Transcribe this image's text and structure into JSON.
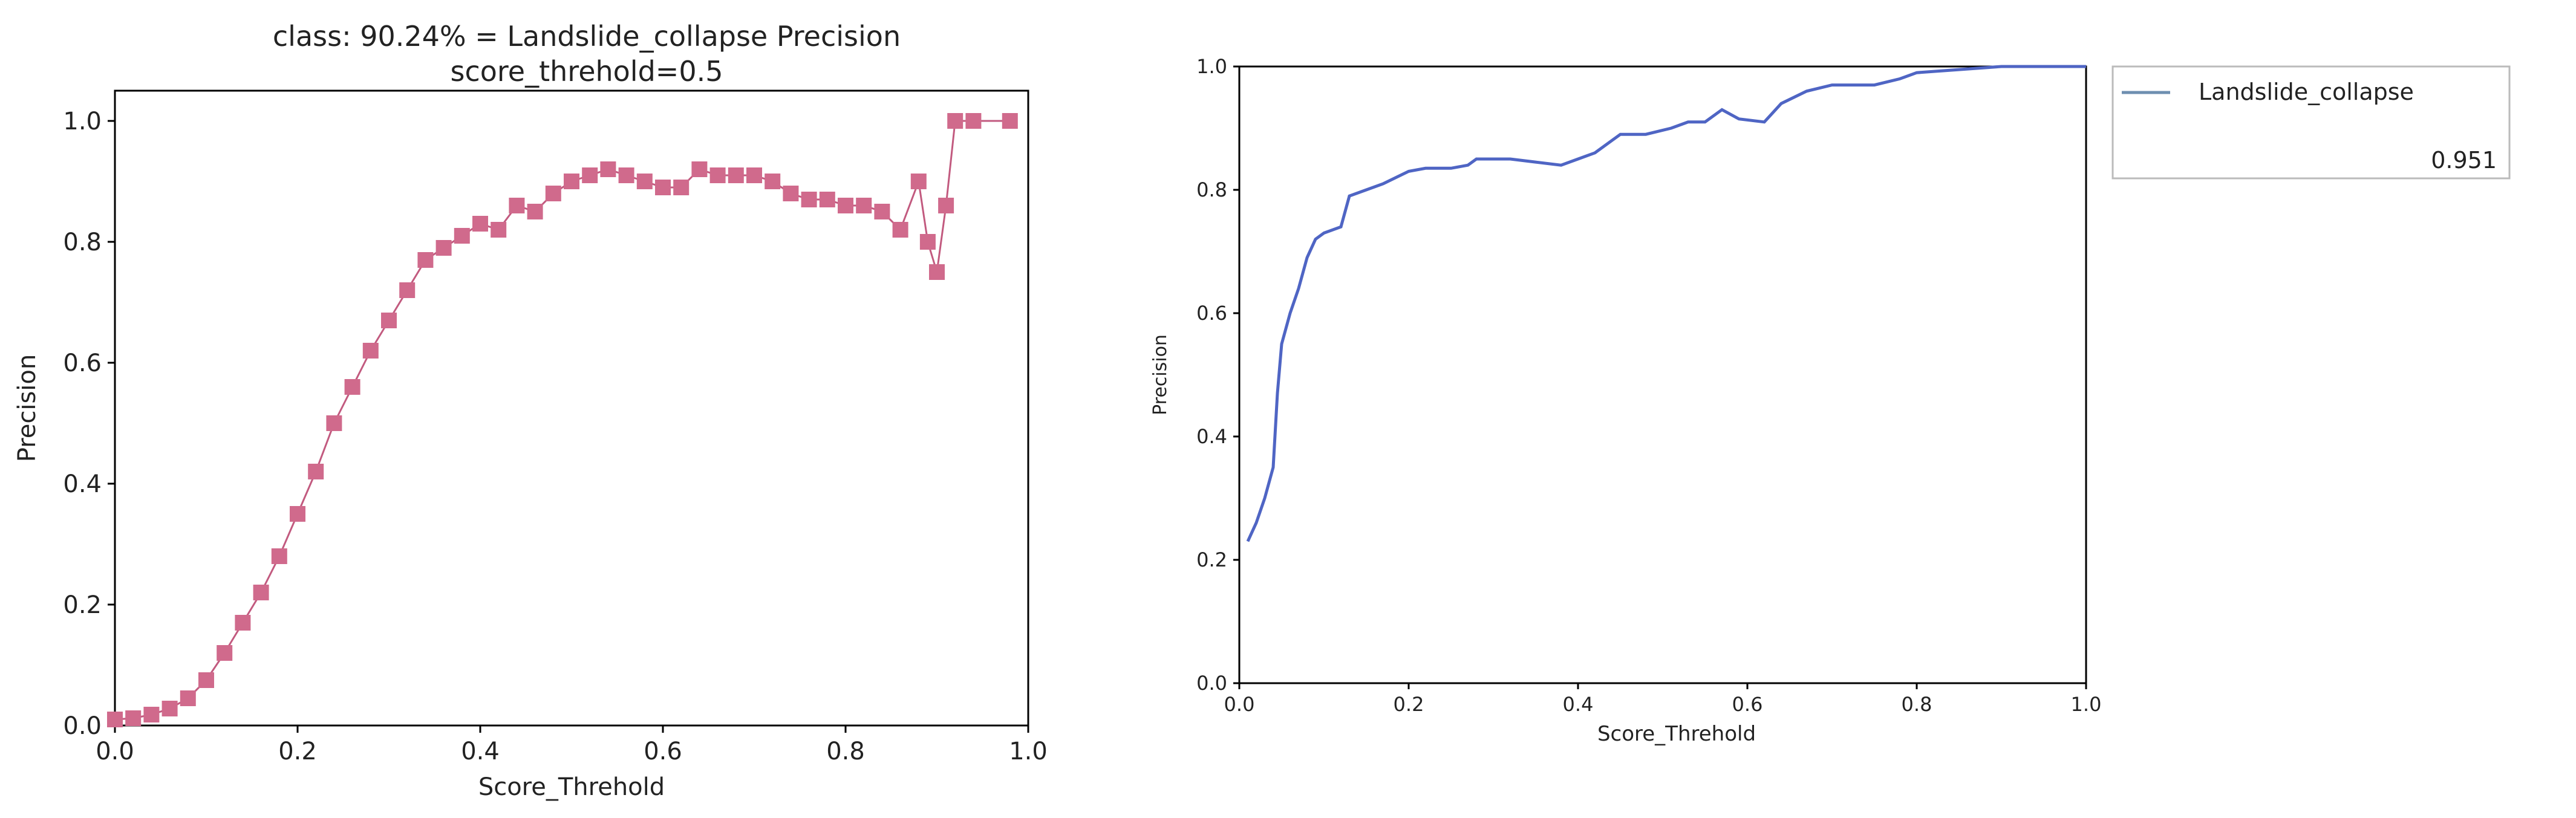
{
  "chart_data": [
    {
      "type": "scatter",
      "title_line1": "class: 90.24% = Landslide_collapse Precision",
      "title_line2": "score_threhold=0.5",
      "xlabel": "Score_Threhold",
      "ylabel": "Precision",
      "xlim": [
        0,
        1
      ],
      "ylim": [
        0,
        1.05
      ],
      "x_ticks": [
        "0.0",
        "0.2",
        "0.4",
        "0.6",
        "0.8",
        "1.0"
      ],
      "y_ticks": [
        "0.0",
        "0.2",
        "0.4",
        "0.6",
        "0.8",
        "1.0"
      ],
      "grid": false,
      "color": "#d06a8c",
      "series": [
        {
          "values": [
            [
              0.0,
              0.01
            ],
            [
              0.02,
              0.012
            ],
            [
              0.04,
              0.018
            ],
            [
              0.06,
              0.028
            ],
            [
              0.08,
              0.045
            ],
            [
              0.1,
              0.075
            ],
            [
              0.12,
              0.12
            ],
            [
              0.14,
              0.17
            ],
            [
              0.16,
              0.22
            ],
            [
              0.18,
              0.28
            ],
            [
              0.2,
              0.35
            ],
            [
              0.22,
              0.42
            ],
            [
              0.24,
              0.5
            ],
            [
              0.26,
              0.56
            ],
            [
              0.28,
              0.62
            ],
            [
              0.3,
              0.67
            ],
            [
              0.32,
              0.72
            ],
            [
              0.34,
              0.77
            ],
            [
              0.36,
              0.79
            ],
            [
              0.38,
              0.81
            ],
            [
              0.4,
              0.83
            ],
            [
              0.42,
              0.82
            ],
            [
              0.44,
              0.86
            ],
            [
              0.46,
              0.85
            ],
            [
              0.48,
              0.88
            ],
            [
              0.5,
              0.9
            ],
            [
              0.52,
              0.91
            ],
            [
              0.54,
              0.92
            ],
            [
              0.56,
              0.91
            ],
            [
              0.58,
              0.9
            ],
            [
              0.6,
              0.89
            ],
            [
              0.62,
              0.89
            ],
            [
              0.64,
              0.92
            ],
            [
              0.66,
              0.91
            ],
            [
              0.68,
              0.91
            ],
            [
              0.7,
              0.91
            ],
            [
              0.72,
              0.9
            ],
            [
              0.74,
              0.88
            ],
            [
              0.76,
              0.87
            ],
            [
              0.78,
              0.87
            ],
            [
              0.8,
              0.86
            ],
            [
              0.82,
              0.86
            ],
            [
              0.84,
              0.85
            ],
            [
              0.86,
              0.82
            ],
            [
              0.88,
              0.9
            ],
            [
              0.89,
              0.8
            ],
            [
              0.9,
              0.75
            ],
            [
              0.91,
              0.86
            ],
            [
              0.92,
              1.0
            ],
            [
              0.94,
              1.0
            ],
            [
              0.98,
              1.0
            ]
          ]
        }
      ]
    },
    {
      "type": "line",
      "xlabel": "Score_Threhold",
      "ylabel": "Precision",
      "xlim": [
        0,
        1
      ],
      "ylim": [
        0,
        1
      ],
      "x_ticks": [
        "0.0",
        "0.2",
        "0.4",
        "0.6",
        "0.8",
        "1.0"
      ],
      "y_ticks": [
        "0.0",
        "0.2",
        "0.4",
        "0.6",
        "0.8",
        "1.0"
      ],
      "grid": false,
      "legend_position": "outside-right-top",
      "legend": {
        "name": "Landslide_collapse",
        "value": "0.951"
      },
      "color": "#4f65c4",
      "series": [
        {
          "name": "Landslide_collapse",
          "values": [
            [
              0.01,
              0.23
            ],
            [
              0.02,
              0.26
            ],
            [
              0.03,
              0.3
            ],
            [
              0.04,
              0.35
            ],
            [
              0.045,
              0.47
            ],
            [
              0.05,
              0.55
            ],
            [
              0.06,
              0.6
            ],
            [
              0.07,
              0.64
            ],
            [
              0.08,
              0.69
            ],
            [
              0.09,
              0.72
            ],
            [
              0.1,
              0.73
            ],
            [
              0.12,
              0.74
            ],
            [
              0.13,
              0.79
            ],
            [
              0.15,
              0.8
            ],
            [
              0.17,
              0.81
            ],
            [
              0.2,
              0.83
            ],
            [
              0.22,
              0.835
            ],
            [
              0.25,
              0.835
            ],
            [
              0.27,
              0.84
            ],
            [
              0.28,
              0.85
            ],
            [
              0.32,
              0.85
            ],
            [
              0.35,
              0.845
            ],
            [
              0.38,
              0.84
            ],
            [
              0.4,
              0.85
            ],
            [
              0.42,
              0.86
            ],
            [
              0.45,
              0.89
            ],
            [
              0.48,
              0.89
            ],
            [
              0.51,
              0.9
            ],
            [
              0.53,
              0.91
            ],
            [
              0.55,
              0.91
            ],
            [
              0.57,
              0.93
            ],
            [
              0.59,
              0.915
            ],
            [
              0.62,
              0.91
            ],
            [
              0.64,
              0.94
            ],
            [
              0.67,
              0.96
            ],
            [
              0.7,
              0.97
            ],
            [
              0.75,
              0.97
            ],
            [
              0.78,
              0.98
            ],
            [
              0.8,
              0.99
            ],
            [
              0.85,
              0.995
            ],
            [
              0.9,
              1.0
            ],
            [
              1.0,
              1.0
            ]
          ]
        }
      ]
    }
  ]
}
